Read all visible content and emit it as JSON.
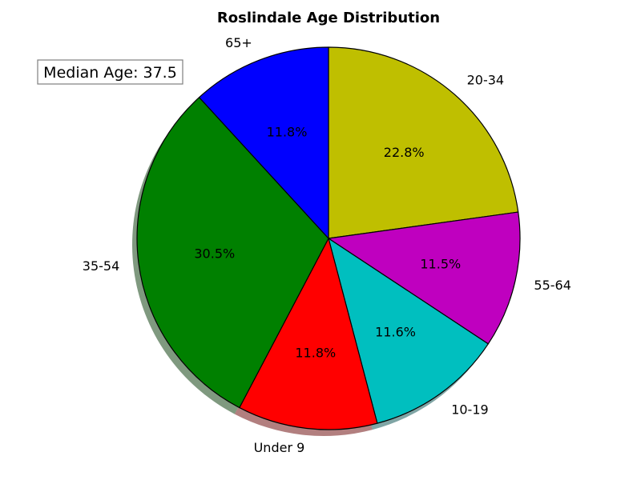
{
  "chart_data": {
    "type": "pie",
    "title": "Roslindale Age Distribution",
    "start_angle_deg": 90,
    "direction": "clockwise",
    "shadow": true,
    "slices": [
      {
        "label": "20-34",
        "pct_label": "22.8%",
        "value": 22.8,
        "color": "#bfbf00"
      },
      {
        "label": "55-64",
        "pct_label": "11.5%",
        "value": 11.5,
        "color": "#bf00bf"
      },
      {
        "label": "10-19",
        "pct_label": "11.6%",
        "value": 11.6,
        "color": "#00bfbf"
      },
      {
        "label": "Under 9",
        "pct_label": "11.8%",
        "value": 11.8,
        "color": "#ff0000"
      },
      {
        "label": "35-54",
        "pct_label": "30.5%",
        "value": 30.5,
        "color": "#008000"
      },
      {
        "label": "65+",
        "pct_label": "11.8%",
        "value": 11.8,
        "color": "#0000ff"
      }
    ],
    "annotation": {
      "text": "Median Age: 37.5",
      "placement": "top-left"
    }
  }
}
